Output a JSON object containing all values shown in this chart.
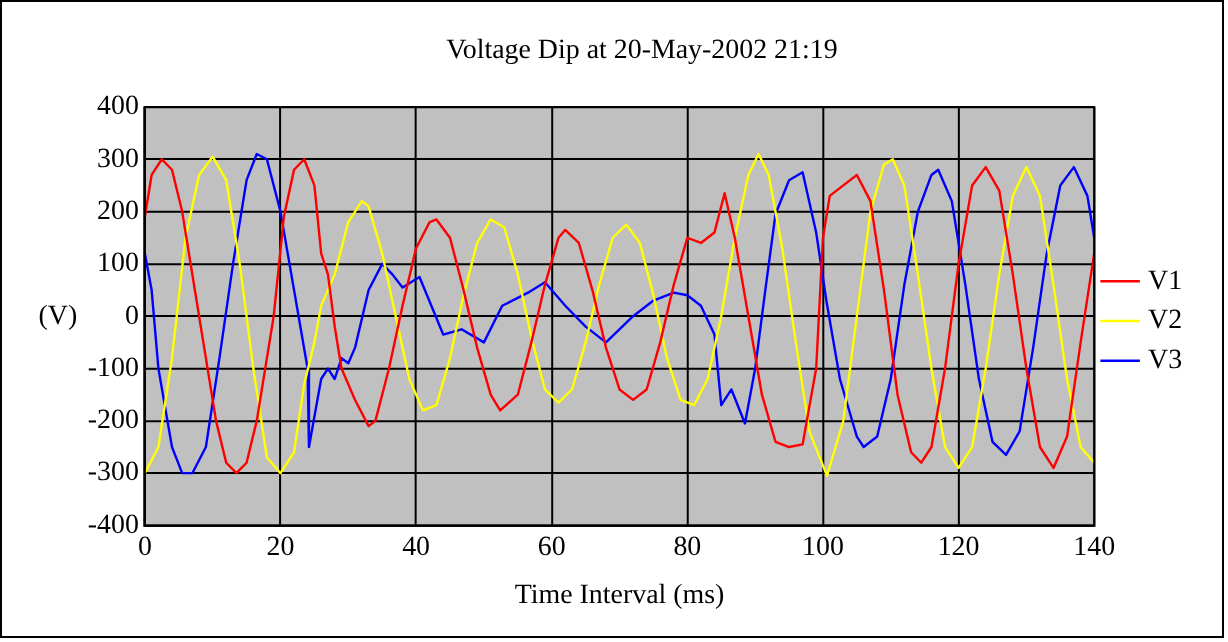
{
  "chart_data": {
    "type": "line",
    "title": "Voltage Dip at 20-May-2002 21:19",
    "xlabel": "Time Interval (ms)",
    "ylabel": "(V)",
    "xlim": [
      0,
      140
    ],
    "xticks": [
      0,
      20,
      40,
      60,
      80,
      100,
      120,
      140
    ],
    "ylim": [
      -400,
      400
    ],
    "yticks": [
      -400,
      -300,
      -200,
      -100,
      0,
      100,
      200,
      300,
      400
    ],
    "grid": true,
    "legend": "right",
    "marker": "none",
    "line_style": "solid",
    "series": [
      {
        "name": "V1",
        "color": "#ff0000",
        "x": [
          0,
          1,
          2.5,
          4,
          5.5,
          8,
          10.5,
          12,
          13.5,
          15,
          16.5,
          19,
          20.5,
          22,
          23.5,
          25,
          26,
          27,
          28,
          29,
          31,
          33,
          34,
          36,
          38,
          40,
          42,
          43,
          45,
          47,
          49,
          51,
          52.4,
          55,
          57,
          59,
          61,
          62,
          64,
          66,
          68,
          70,
          72,
          74,
          76,
          78,
          80,
          82,
          84,
          85.5,
          87,
          89,
          91,
          93,
          95,
          97,
          99,
          100,
          101,
          103,
          105,
          107,
          109,
          111,
          113,
          114.5,
          116,
          118,
          120,
          122,
          124,
          126,
          128,
          130,
          132,
          134,
          136,
          138,
          140
        ],
        "values": [
          190,
          270,
          300,
          280,
          200,
          0,
          -200,
          -280,
          -300,
          -280,
          -200,
          0,
          190,
          280,
          300,
          250,
          120,
          80,
          -20,
          -100,
          -160,
          -210,
          -200,
          -100,
          20,
          130,
          180,
          185,
          150,
          50,
          -60,
          -150,
          -180,
          -150,
          -50,
          60,
          150,
          165,
          140,
          50,
          -60,
          -140,
          -160,
          -140,
          -50,
          60,
          150,
          140,
          160,
          235,
          150,
          0,
          -150,
          -240,
          -250,
          -245,
          -100,
          150,
          230,
          250,
          270,
          220,
          50,
          -150,
          -260,
          -280,
          -250,
          -100,
          100,
          250,
          285,
          240,
          80,
          -100,
          -250,
          -290,
          -230,
          -50,
          120
        ]
      },
      {
        "name": "V2",
        "color": "#ffff00",
        "x": [
          0,
          2,
          4,
          6,
          8,
          10,
          12,
          14,
          16,
          18,
          20,
          22,
          23.5,
          25,
          26,
          28,
          30,
          32,
          33,
          35,
          37,
          39,
          41,
          43,
          45,
          47,
          49,
          51,
          53,
          55,
          57,
          59,
          61,
          63,
          65,
          67,
          69,
          71,
          73,
          75,
          77,
          79,
          81,
          83,
          85,
          87,
          89,
          90.5,
          92,
          94,
          96,
          98,
          100.6,
          103,
          105,
          107,
          109,
          110.3,
          112,
          114,
          116,
          118,
          120,
          122,
          124,
          126,
          128,
          130,
          132,
          134,
          136,
          138,
          140
        ],
        "values": [
          -300,
          -250,
          -80,
          150,
          270,
          305,
          260,
          100,
          -100,
          -270,
          -300,
          -260,
          -130,
          -50,
          20,
          80,
          180,
          220,
          210,
          120,
          0,
          -120,
          -180,
          -170,
          -80,
          40,
          140,
          185,
          170,
          80,
          -40,
          -140,
          -165,
          -140,
          -50,
          60,
          150,
          175,
          140,
          40,
          -80,
          -160,
          -170,
          -120,
          0,
          150,
          270,
          310,
          270,
          130,
          -50,
          -220,
          -305,
          -200,
          0,
          200,
          290,
          300,
          250,
          80,
          -100,
          -250,
          -290,
          -250,
          -100,
          80,
          230,
          285,
          230,
          60,
          -120,
          -250,
          -280
        ]
      },
      {
        "name": "V3",
        "color": "#0000ff",
        "x": [
          0,
          1,
          2,
          4,
          5.5,
          7,
          9,
          11,
          13,
          15,
          16.5,
          18,
          20,
          22,
          24,
          24.2,
          26,
          27,
          28,
          29,
          30,
          31,
          33,
          35,
          36.5,
          38,
          40.5,
          44,
          46.7,
          50,
          52.7,
          56.5,
          59,
          62,
          65,
          68,
          72,
          75,
          78,
          80,
          82,
          84,
          85,
          86.5,
          88.5,
          90,
          91.5,
          93,
          95,
          97,
          99,
          100.5,
          102.5,
          105,
          106,
          108,
          110,
          112,
          114,
          116,
          117,
          119,
          121,
          123,
          125,
          127,
          129,
          131,
          133,
          135,
          137,
          139,
          140
        ],
        "values": [
          120,
          50,
          -100,
          -250,
          -300,
          -300,
          -250,
          -80,
          100,
          260,
          310,
          300,
          200,
          50,
          -100,
          -250,
          -120,
          -100,
          -120,
          -80,
          -90,
          -60,
          50,
          100,
          80,
          55,
          75,
          -35,
          -25,
          -50,
          20,
          45,
          65,
          20,
          -20,
          -50,
          0,
          30,
          45,
          40,
          20,
          -35,
          -170,
          -140,
          -205,
          -100,
          50,
          195,
          260,
          275,
          160,
          30,
          -120,
          -230,
          -250,
          -230,
          -120,
          60,
          200,
          270,
          280,
          220,
          60,
          -120,
          -240,
          -265,
          -220,
          -60,
          120,
          250,
          285,
          230,
          150
        ]
      }
    ]
  }
}
